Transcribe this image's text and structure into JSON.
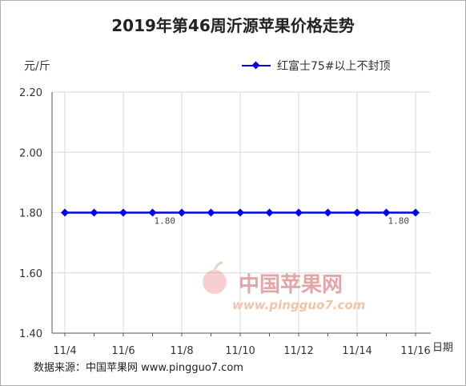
{
  "chart_data": {
    "type": "line",
    "title": "2019年第46周沂源苹果价格走势",
    "unit_label": "元/斤",
    "xlabel": "日期",
    "ylabel": "",
    "ylim": [
      1.4,
      2.2
    ],
    "y_ticks": [
      "2.20",
      "2.00",
      "1.80",
      "1.60",
      "1.40"
    ],
    "x_ticks": [
      "11/4",
      "11/6",
      "11/8",
      "11/10",
      "11/12",
      "11/14",
      "11/16"
    ],
    "x": [
      "11/4",
      "11/5",
      "11/6",
      "11/7",
      "11/8",
      "11/9",
      "11/10",
      "11/11",
      "11/12",
      "11/13",
      "11/14",
      "11/15",
      "11/16"
    ],
    "series": [
      {
        "name": "红富士75#以上不封顶",
        "values": [
          1.8,
          1.8,
          1.8,
          1.8,
          1.8,
          1.8,
          1.8,
          1.8,
          1.8,
          1.8,
          1.8,
          1.8,
          1.8
        ],
        "color": "#0000ee"
      }
    ],
    "data_labels": [
      {
        "index": 3,
        "text": "1.80"
      },
      {
        "index": 11,
        "text": "1.80"
      }
    ],
    "grid": true,
    "legend_position": "top-right"
  },
  "watermark": {
    "brand": "中国苹果网",
    "url": "www.pingguo7.com"
  },
  "source_text": "数据来源：中国苹果网 www.pingguo7.com"
}
